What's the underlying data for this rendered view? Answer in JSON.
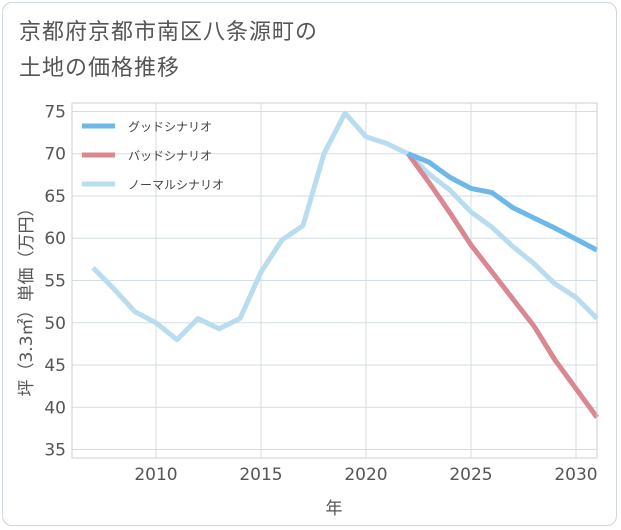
{
  "title_lines": [
    "京都府京都市南区八条源町の",
    "土地の価格推移"
  ],
  "chart_data": {
    "type": "line",
    "xlabel": "年",
    "ylabel": "坪（3.3㎡）単価（万円）",
    "xlim": [
      2006,
      2031
    ],
    "ylim": [
      34,
      76
    ],
    "xticks": [
      2010,
      2015,
      2020,
      2025,
      2030
    ],
    "yticks": [
      35,
      40,
      45,
      50,
      55,
      60,
      65,
      70,
      75
    ],
    "grid": true,
    "legend_position": "top-left",
    "series": [
      {
        "name": "グッドシナリオ",
        "color": "#6cb8ea",
        "x": [
          2022,
          2023,
          2024,
          2025,
          2026,
          2027,
          2028,
          2029,
          2030,
          2031
        ],
        "y": [
          70.0,
          69.0,
          67.2,
          65.9,
          65.4,
          63.6,
          62.4,
          61.2,
          59.9,
          58.6
        ]
      },
      {
        "name": "バッドシナリオ",
        "color": "#d98892",
        "x": [
          2022,
          2023,
          2024,
          2025,
          2026,
          2027,
          2028,
          2029,
          2030,
          2031
        ],
        "y": [
          70.0,
          66.6,
          63.0,
          59.2,
          56.0,
          52.8,
          49.6,
          45.6,
          42.2,
          38.8
        ]
      },
      {
        "name": "ノーマルシナリオ",
        "color": "#b9ddef",
        "x": [
          2007,
          2008,
          2009,
          2010,
          2011,
          2012,
          2013,
          2014,
          2015,
          2016,
          2017,
          2018,
          2019,
          2020,
          2021,
          2022,
          2023,
          2024,
          2025,
          2026,
          2027,
          2028,
          2029,
          2030,
          2031
        ],
        "y": [
          56.5,
          54.0,
          51.3,
          50.0,
          48.0,
          50.5,
          49.3,
          50.5,
          56.0,
          59.8,
          61.5,
          70.0,
          74.8,
          72.0,
          71.2,
          70.0,
          67.6,
          65.7,
          63.1,
          61.3,
          59.0,
          57.0,
          54.6,
          53.0,
          50.5
        ]
      }
    ]
  }
}
